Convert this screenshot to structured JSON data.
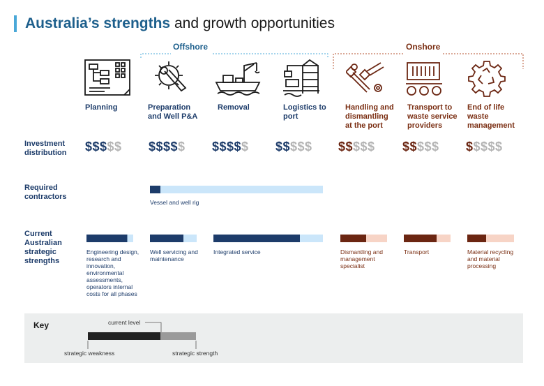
{
  "title": {
    "highlight": "Australia’s strengths",
    "rest": " and growth opportunities"
  },
  "groups": {
    "offshore": "Offshore",
    "onshore": "Onshore"
  },
  "stages": [
    {
      "name": "Planning",
      "icon": "planning-flowchart-icon",
      "dollars_filled": "$$$",
      "dollars_empty": "$$"
    },
    {
      "name": "Preparation and Well P&A",
      "icon": "wrench-gear-icon",
      "dollars_filled": "$$$$",
      "dollars_empty": "$"
    },
    {
      "name": "Removal",
      "icon": "crane-ship-icon",
      "dollars_filled": "$$$$",
      "dollars_empty": "$"
    },
    {
      "name": "Logistics to port",
      "icon": "port-crane-icon",
      "dollars_filled": "$$",
      "dollars_empty": "$$$"
    },
    {
      "name": "Handling and dismantling at the port",
      "icon": "bolts-nuts-icon",
      "dollars_filled": "$$",
      "dollars_empty": "$$$"
    },
    {
      "name": "Transport to waste service providers",
      "icon": "container-truck-icon",
      "dollars_filled": "$$",
      "dollars_empty": "$$$"
    },
    {
      "name": "End of life waste management",
      "icon": "recycle-gear-icon",
      "dollars_filled": "$",
      "dollars_empty": "$$$$"
    }
  ],
  "rows": {
    "investment": "Investment distribution",
    "contractors": "Required contractors",
    "strengths": "Current Australian strategic strengths"
  },
  "contractor": {
    "label": "Vessel and well rig",
    "level": 0.06
  },
  "strengths": [
    {
      "label": "Engineering design, research and innovation, environmental assessments, operators internal costs for all phases",
      "level": 0.87
    },
    {
      "label": "Well servicing and maintenance",
      "level": 0.72
    },
    {
      "label": "Integrated service",
      "level": 0.79
    },
    {
      "label": "Dismantling and management specialist",
      "level": 0.55
    },
    {
      "label": "Transport",
      "level": 0.7
    },
    {
      "label": "Material recycling and material processing",
      "level": 0.4
    }
  ],
  "key": {
    "title": "Key",
    "current_level": "current level",
    "weakness": "strategic weakness",
    "strength": "strategic strength",
    "level": 0.67
  },
  "colors": {
    "offshore_dark": "#1d3c6a",
    "offshore_light": "#cbe6fa",
    "onshore_dark": "#6b2612",
    "onshore_light": "#f7d4c6",
    "key_dark": "#222222",
    "key_light": "#9a9a9a",
    "accent": "#4aa8d8"
  }
}
